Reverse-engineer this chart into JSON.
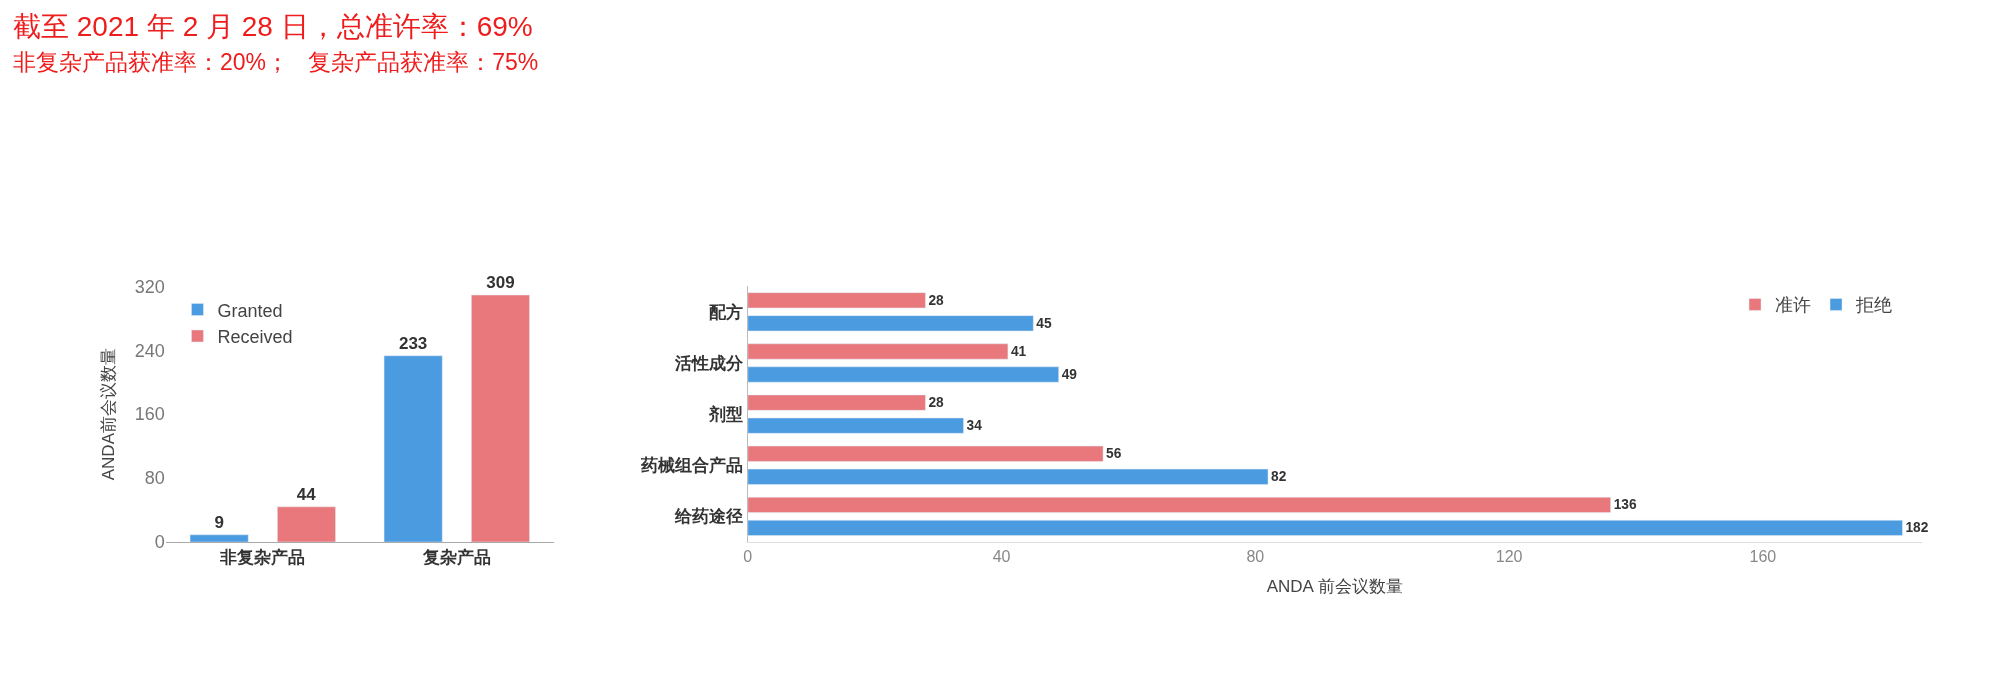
{
  "chart_data": [
    {
      "type": "bar",
      "title": "截至 2021 年 2 月 28 日，总准许率：69%",
      "subtitle": "非复杂产品获准率：20%；   复杂产品获准率：75%",
      "ylabel": "ANDA前会议数量",
      "categories": [
        "非复杂产品",
        "复杂产品"
      ],
      "series": [
        {
          "name": "Granted",
          "color": "#4a9be0",
          "values": [
            9,
            233
          ]
        },
        {
          "name": "Received",
          "color": "#e8787c",
          "values": [
            44,
            309
          ]
        }
      ],
      "ylim": [
        0,
        320
      ],
      "yticks": [
        0,
        80,
        160,
        240,
        320
      ],
      "legend": "top left",
      "data_labels": true
    },
    {
      "type": "bar",
      "orientation": "horizontal",
      "xlabel": "ANDA 前会议数量",
      "categories": [
        "配方",
        "活性成分",
        "剂型",
        "药械组合产品",
        "给药途径"
      ],
      "series": [
        {
          "name": "准许",
          "color": "#e8787c",
          "values": [
            28,
            41,
            28,
            56,
            136
          ]
        },
        {
          "name": "拒绝",
          "color": "#4a9be0",
          "values": [
            45,
            49,
            34,
            82,
            182
          ]
        }
      ],
      "xlim": [
        0,
        185
      ],
      "xticks": [
        0,
        40,
        80,
        120,
        160
      ],
      "legend": "top right",
      "data_labels": true
    }
  ]
}
